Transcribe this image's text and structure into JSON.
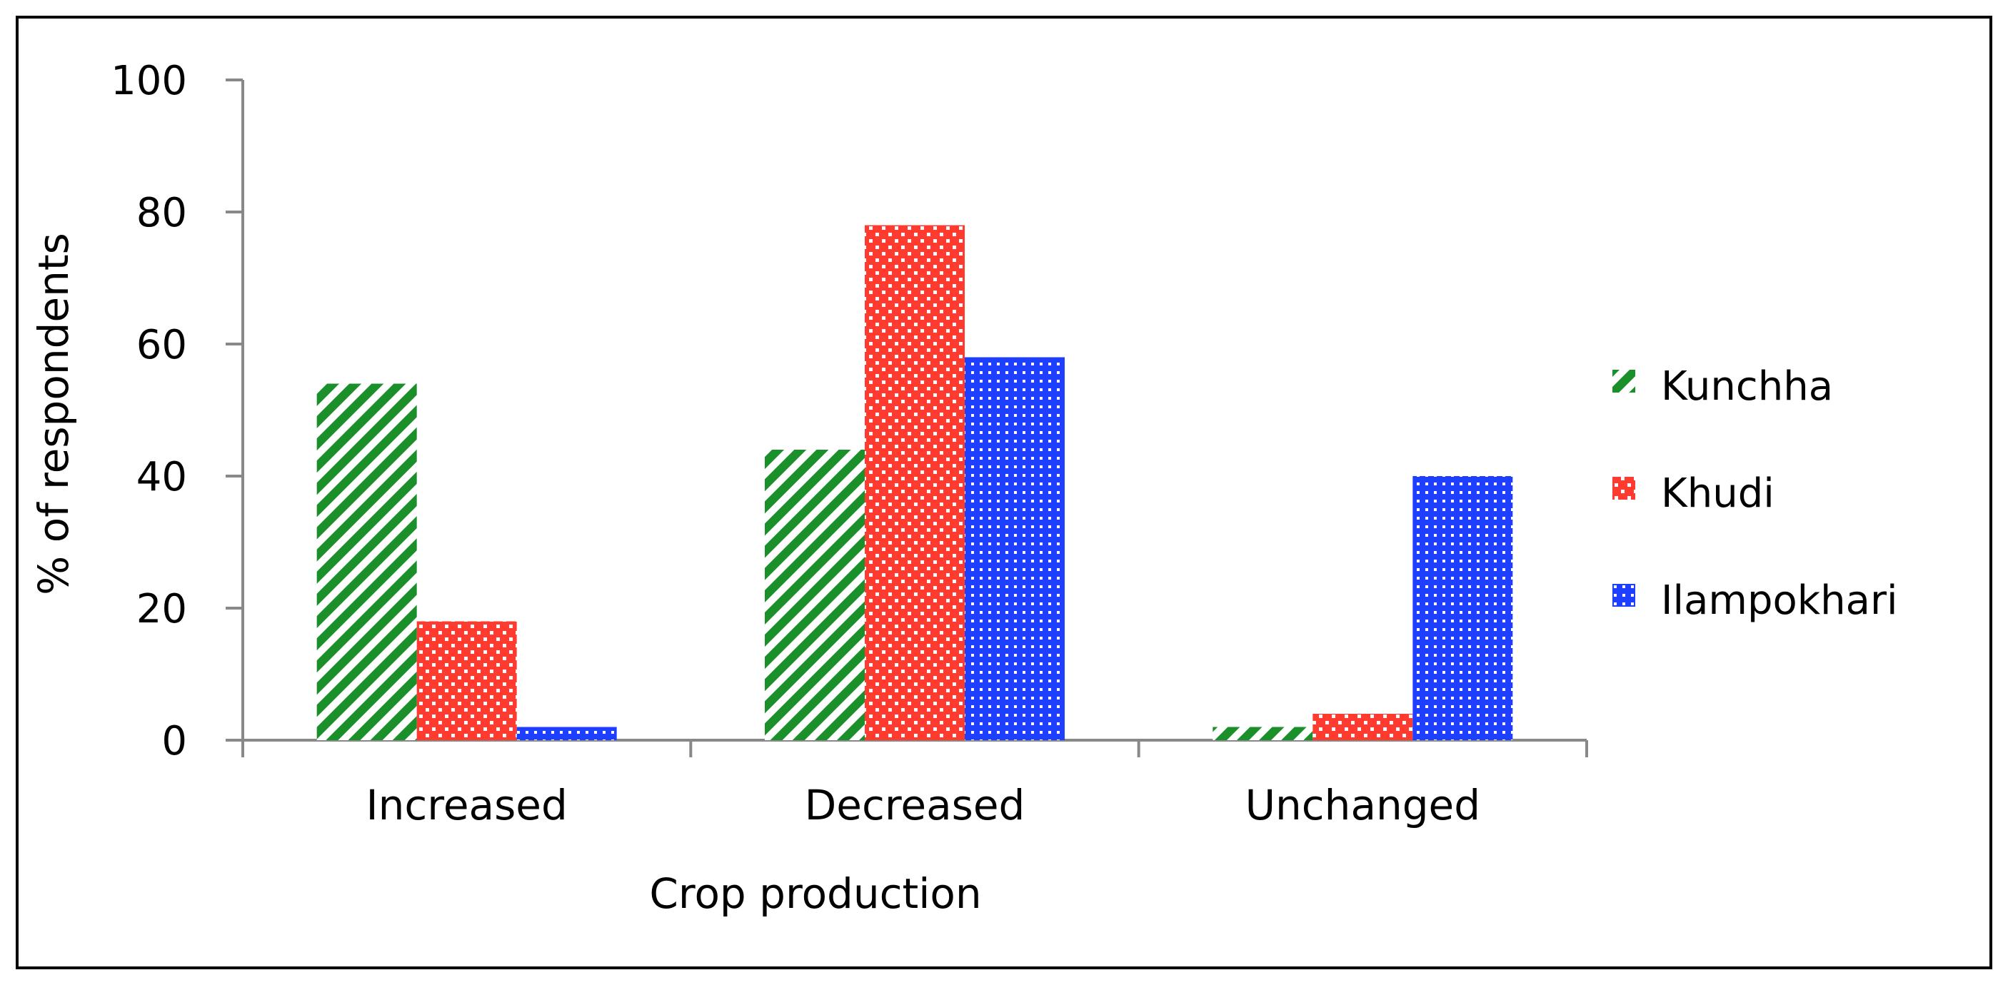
{
  "chart_data": {
    "type": "bar",
    "title": "",
    "xlabel": "Crop production",
    "ylabel": "% of respondents",
    "categories": [
      "Increased",
      "Decreased",
      "Unchanged"
    ],
    "ylim": [
      0,
      100
    ],
    "yticks": [
      "0",
      "20",
      "40",
      "60",
      "80",
      "100"
    ],
    "grid": false,
    "legend_position": "right",
    "series": [
      {
        "name": "Kunchha",
        "values": [
          54,
          44,
          2
        ],
        "color": "#1a8f2a",
        "pattern": "diagonal-stripes"
      },
      {
        "name": "Khudi",
        "values": [
          18,
          78,
          4
        ],
        "color": "#ff3b30",
        "pattern": "checker"
      },
      {
        "name": "Ilampokhari",
        "values": [
          2,
          58,
          40
        ],
        "color": "#1f3fff",
        "pattern": "dotted-grid"
      }
    ]
  }
}
